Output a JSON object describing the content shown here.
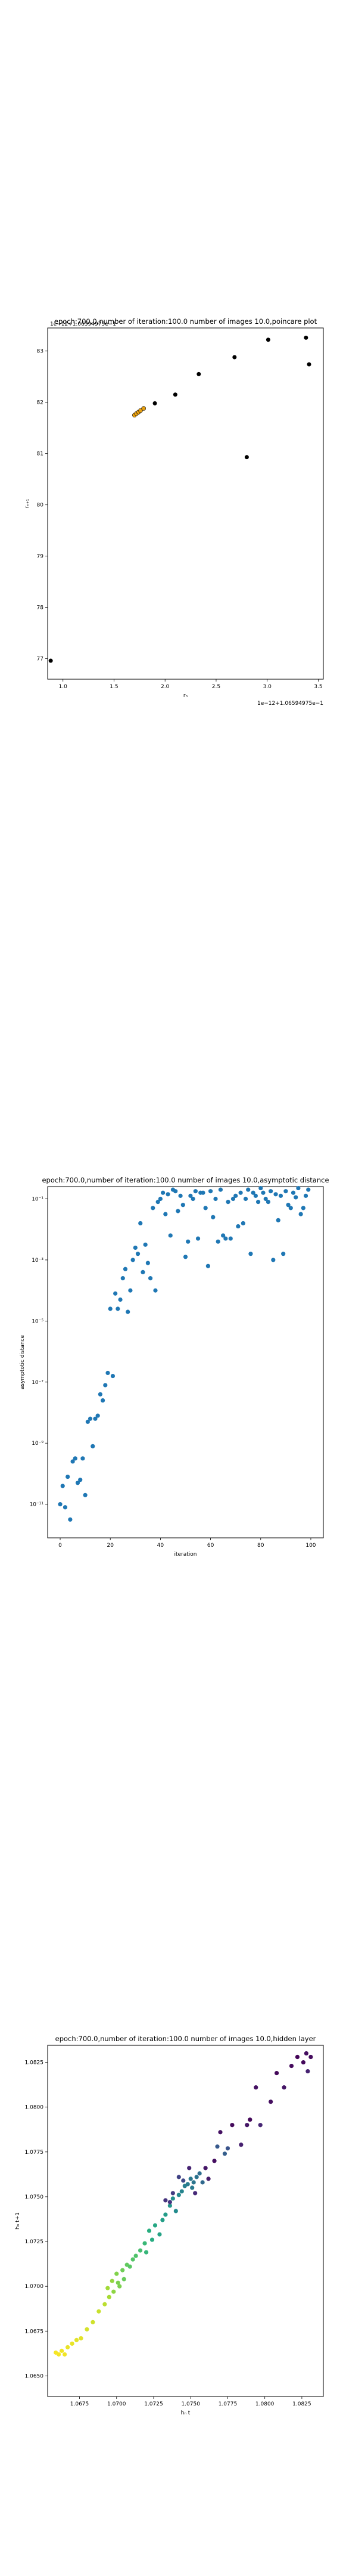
{
  "chart_data": [
    {
      "type": "scatter",
      "title": "epoch:700.0,number of iteration:100.0  number of images 10.0,poincare plot",
      "xlabel": "rₙ",
      "ylabel": "rₙ₊₁",
      "offset_text_x": "1e−12+1.06594975e−1",
      "offset_text_y": "1e−12+1.06594975e−1",
      "xticks": [
        "1.0",
        "1.5",
        "2.0",
        "2.5",
        "3.0",
        "3.5"
      ],
      "yticks": [
        "77",
        "78",
        "79",
        "80",
        "81",
        "82",
        "83"
      ],
      "xlim": [
        0.85,
        3.55
      ],
      "ylim": [
        76.6,
        83.45
      ],
      "grid": false,
      "marker_color": "#000000",
      "highlight_color": "#e8a010",
      "points": [
        {
          "x": 0.88,
          "y": 76.96
        },
        {
          "x": 1.7,
          "y": 81.75
        },
        {
          "x": 1.72,
          "y": 81.78
        },
        {
          "x": 1.74,
          "y": 81.81
        },
        {
          "x": 1.76,
          "y": 81.84
        },
        {
          "x": 1.79,
          "y": 81.88
        },
        {
          "x": 1.9,
          "y": 81.98
        },
        {
          "x": 2.1,
          "y": 82.15
        },
        {
          "x": 2.33,
          "y": 82.55
        },
        {
          "x": 2.68,
          "y": 82.88
        },
        {
          "x": 2.8,
          "y": 80.93
        },
        {
          "x": 3.01,
          "y": 83.22
        },
        {
          "x": 3.38,
          "y": 83.26
        },
        {
          "x": 3.41,
          "y": 82.74
        }
      ]
    },
    {
      "type": "scatter",
      "title": "epoch:700.0,number of iteration:100.0  number of images 10.0,asymptotic distance",
      "xlabel": "iteration",
      "ylabel": "asymptotic distance",
      "yscale": "log",
      "xticks": [
        0,
        20,
        40,
        60,
        80,
        100
      ],
      "yticks": [
        "10⁻¹¹",
        "10⁻⁹",
        "10⁻⁷",
        "10⁻⁵",
        "10⁻³",
        "10⁻¹"
      ],
      "ytick_exponents": [
        -11,
        -9,
        -7,
        -5,
        -3,
        -1
      ],
      "xlim": [
        -5,
        105
      ],
      "ylim_log10": [
        -12.1,
        -0.6
      ],
      "grid": false,
      "marker_color": "#1f77b4",
      "x": [
        0,
        1,
        2,
        3,
        4,
        5,
        6,
        7,
        8,
        9,
        10,
        11,
        12,
        13,
        14,
        15,
        16,
        17,
        18,
        19,
        20,
        21,
        22,
        23,
        24,
        25,
        26,
        27,
        28,
        29,
        30,
        31,
        32,
        33,
        34,
        35,
        36,
        37,
        38,
        39,
        40,
        41,
        42,
        43,
        44,
        45,
        46,
        47,
        48,
        49,
        50,
        51,
        52,
        53,
        54,
        55,
        56,
        57,
        58,
        59,
        60,
        61,
        62,
        63,
        64,
        65,
        66,
        67,
        68,
        69,
        70,
        71,
        72,
        73,
        74,
        75,
        76,
        77,
        78,
        79,
        80,
        81,
        82,
        83,
        84,
        85,
        86,
        87,
        88,
        89,
        90,
        91,
        92,
        93,
        94,
        95,
        96,
        97,
        98,
        99
      ],
      "log10_y": [
        -11.0,
        -10.4,
        -11.1,
        -10.1,
        -11.5,
        -9.6,
        -9.5,
        -10.3,
        -10.2,
        -9.5,
        -10.7,
        -8.3,
        -8.2,
        -9.1,
        -8.2,
        -8.1,
        -7.4,
        -7.6,
        -7.1,
        -6.7,
        -4.6,
        -6.8,
        -4.1,
        -4.6,
        -4.3,
        -3.6,
        -3.3,
        -4.7,
        -4.0,
        -3.0,
        -2.6,
        -2.8,
        -1.8,
        -3.4,
        -2.5,
        -3.1,
        -3.6,
        -1.3,
        -4.0,
        -1.1,
        -1.0,
        -0.8,
        -1.5,
        -0.85,
        -2.2,
        -0.7,
        -0.75,
        -1.4,
        -0.9,
        -1.2,
        -2.9,
        -2.4,
        -0.9,
        -1.0,
        -0.75,
        -2.3,
        -0.8,
        -0.8,
        -1.3,
        -3.2,
        -0.75,
        -1.6,
        -1.0,
        -2.4,
        -0.7,
        -2.2,
        -2.3,
        -1.1,
        -2.3,
        -1.0,
        -0.9,
        -1.9,
        -0.8,
        -1.8,
        -1.0,
        -0.7,
        -2.8,
        -0.8,
        -0.9,
        -1.1,
        -0.65,
        -0.8,
        -1.0,
        -1.1,
        -0.75,
        -3.0,
        -0.85,
        -1.7,
        -0.9,
        -2.8,
        -0.75,
        -1.2,
        -1.3,
        -0.8,
        -0.95,
        -0.65,
        -1.5,
        -1.3,
        -0.9,
        -0.7
      ]
    },
    {
      "type": "scatter",
      "title": "epoch:700.0,number of iteration:100.0  number of images 10.0,hidden layer",
      "xlabel": "hₙ t",
      "ylabel": "hₙ t+1",
      "xticks": [
        "1.0675",
        "1.0700",
        "1.0725",
        "1.0750",
        "1.0775",
        "1.0800",
        "1.0825"
      ],
      "yticks": [
        "1.0650",
        "1.0675",
        "1.0700",
        "1.0725",
        "1.0750",
        "1.0775",
        "1.0800",
        "1.0825"
      ],
      "xticks_num": [
        1.0675,
        1.07,
        1.0725,
        1.075,
        1.0775,
        1.08,
        1.0825
      ],
      "yticks_num": [
        1.065,
        1.0675,
        1.07,
        1.0725,
        1.075,
        1.0775,
        1.08,
        1.0825
      ],
      "xlim": [
        1.06535,
        1.08395
      ],
      "ylim": [
        1.06385,
        1.08345
      ],
      "grid": false,
      "colormap": "viridis",
      "points": [
        {
          "x": 1.0659,
          "y": 1.0663,
          "c": 0.99
        },
        {
          "x": 1.0661,
          "y": 1.0662,
          "c": 0.99
        },
        {
          "x": 1.0663,
          "y": 1.0664,
          "c": 0.98
        },
        {
          "x": 1.0665,
          "y": 1.0662,
          "c": 0.98
        },
        {
          "x": 1.0667,
          "y": 1.0666,
          "c": 0.97
        },
        {
          "x": 1.067,
          "y": 1.0668,
          "c": 0.97
        },
        {
          "x": 1.0673,
          "y": 1.067,
          "c": 0.96
        },
        {
          "x": 1.0676,
          "y": 1.0671,
          "c": 0.96
        },
        {
          "x": 1.068,
          "y": 1.0676,
          "c": 0.94
        },
        {
          "x": 1.0684,
          "y": 1.068,
          "c": 0.93
        },
        {
          "x": 1.0688,
          "y": 1.0686,
          "c": 0.92
        },
        {
          "x": 1.0692,
          "y": 1.069,
          "c": 0.9
        },
        {
          "x": 1.0694,
          "y": 1.0699,
          "c": 0.86
        },
        {
          "x": 1.0695,
          "y": 1.0694,
          "c": 0.87
        },
        {
          "x": 1.0697,
          "y": 1.0703,
          "c": 0.84
        },
        {
          "x": 1.0698,
          "y": 1.0697,
          "c": 0.83
        },
        {
          "x": 1.07,
          "y": 1.0707,
          "c": 0.81
        },
        {
          "x": 1.0701,
          "y": 1.0702,
          "c": 0.8
        },
        {
          "x": 1.0702,
          "y": 1.07,
          "c": 0.8
        },
        {
          "x": 1.0704,
          "y": 1.0709,
          "c": 0.78
        },
        {
          "x": 1.0705,
          "y": 1.0704,
          "c": 0.77
        },
        {
          "x": 1.0707,
          "y": 1.0712,
          "c": 0.76
        },
        {
          "x": 1.0709,
          "y": 1.0711,
          "c": 0.74
        },
        {
          "x": 1.0711,
          "y": 1.0715,
          "c": 0.73
        },
        {
          "x": 1.0713,
          "y": 1.0717,
          "c": 0.72
        },
        {
          "x": 1.0716,
          "y": 1.072,
          "c": 0.7
        },
        {
          "x": 1.0719,
          "y": 1.0724,
          "c": 0.67
        },
        {
          "x": 1.072,
          "y": 1.0719,
          "c": 0.66
        },
        {
          "x": 1.0722,
          "y": 1.0731,
          "c": 0.63
        },
        {
          "x": 1.0724,
          "y": 1.0726,
          "c": 0.62
        },
        {
          "x": 1.0726,
          "y": 1.0734,
          "c": 0.6
        },
        {
          "x": 1.0729,
          "y": 1.0729,
          "c": 0.58
        },
        {
          "x": 1.0731,
          "y": 1.0737,
          "c": 0.56
        },
        {
          "x": 1.0733,
          "y": 1.074,
          "c": 0.55
        },
        {
          "x": 1.0736,
          "y": 1.0745,
          "c": 0.52
        },
        {
          "x": 1.0738,
          "y": 1.0749,
          "c": 0.5
        },
        {
          "x": 1.074,
          "y": 1.0742,
          "c": 0.48
        },
        {
          "x": 1.0742,
          "y": 1.0751,
          "c": 0.47
        },
        {
          "x": 1.0744,
          "y": 1.0753,
          "c": 0.45
        },
        {
          "x": 1.0746,
          "y": 1.0756,
          "c": 0.43
        },
        {
          "x": 1.0748,
          "y": 1.0757,
          "c": 0.42
        },
        {
          "x": 1.075,
          "y": 1.076,
          "c": 0.4
        },
        {
          "x": 1.0751,
          "y": 1.0755,
          "c": 0.41
        },
        {
          "x": 1.0752,
          "y": 1.0758,
          "c": 0.39
        },
        {
          "x": 1.0754,
          "y": 1.0761,
          "c": 0.38
        },
        {
          "x": 1.0756,
          "y": 1.0763,
          "c": 0.36
        },
        {
          "x": 1.0758,
          "y": 1.0758,
          "c": 0.34
        },
        {
          "x": 1.0742,
          "y": 1.0761,
          "c": 0.2
        },
        {
          "x": 1.0738,
          "y": 1.0752,
          "c": 0.18
        },
        {
          "x": 1.0733,
          "y": 1.0748,
          "c": 0.15
        },
        {
          "x": 1.0736,
          "y": 1.0747,
          "c": 0.16
        },
        {
          "x": 1.0745,
          "y": 1.0759,
          "c": 0.22
        },
        {
          "x": 1.0749,
          "y": 1.0766,
          "c": 0.1
        },
        {
          "x": 1.0753,
          "y": 1.0752,
          "c": 0.12
        },
        {
          "x": 1.076,
          "y": 1.0766,
          "c": 0.06
        },
        {
          "x": 1.0762,
          "y": 1.076,
          "c": 0.08
        },
        {
          "x": 1.0766,
          "y": 1.077,
          "c": 0.04
        },
        {
          "x": 1.0768,
          "y": 1.0778,
          "c": 0.28
        },
        {
          "x": 1.077,
          "y": 1.0786,
          "c": 0.05
        },
        {
          "x": 1.0773,
          "y": 1.0774,
          "c": 0.3
        },
        {
          "x": 1.0775,
          "y": 1.0777,
          "c": 0.26
        },
        {
          "x": 1.0778,
          "y": 1.079,
          "c": 0.03
        },
        {
          "x": 1.0784,
          "y": 1.0779,
          "c": 0.09
        },
        {
          "x": 1.0788,
          "y": 1.079,
          "c": 0.06
        },
        {
          "x": 1.079,
          "y": 1.0793,
          "c": 0.02
        },
        {
          "x": 1.0794,
          "y": 1.0811,
          "c": 0.05
        },
        {
          "x": 1.0797,
          "y": 1.079,
          "c": 0.11
        },
        {
          "x": 1.0804,
          "y": 1.0803,
          "c": 0.04
        },
        {
          "x": 1.0808,
          "y": 1.0819,
          "c": 0.02
        },
        {
          "x": 1.0813,
          "y": 1.0811,
          "c": 0.06
        },
        {
          "x": 1.0818,
          "y": 1.0823,
          "c": 0.03
        },
        {
          "x": 1.0822,
          "y": 1.0828,
          "c": 0.01
        },
        {
          "x": 1.0826,
          "y": 1.0825,
          "c": 0.02
        },
        {
          "x": 1.0828,
          "y": 1.083,
          "c": 0.04
        },
        {
          "x": 1.0831,
          "y": 1.0828,
          "c": 0.03
        },
        {
          "x": 1.0829,
          "y": 1.082,
          "c": 0.1
        }
      ]
    }
  ]
}
